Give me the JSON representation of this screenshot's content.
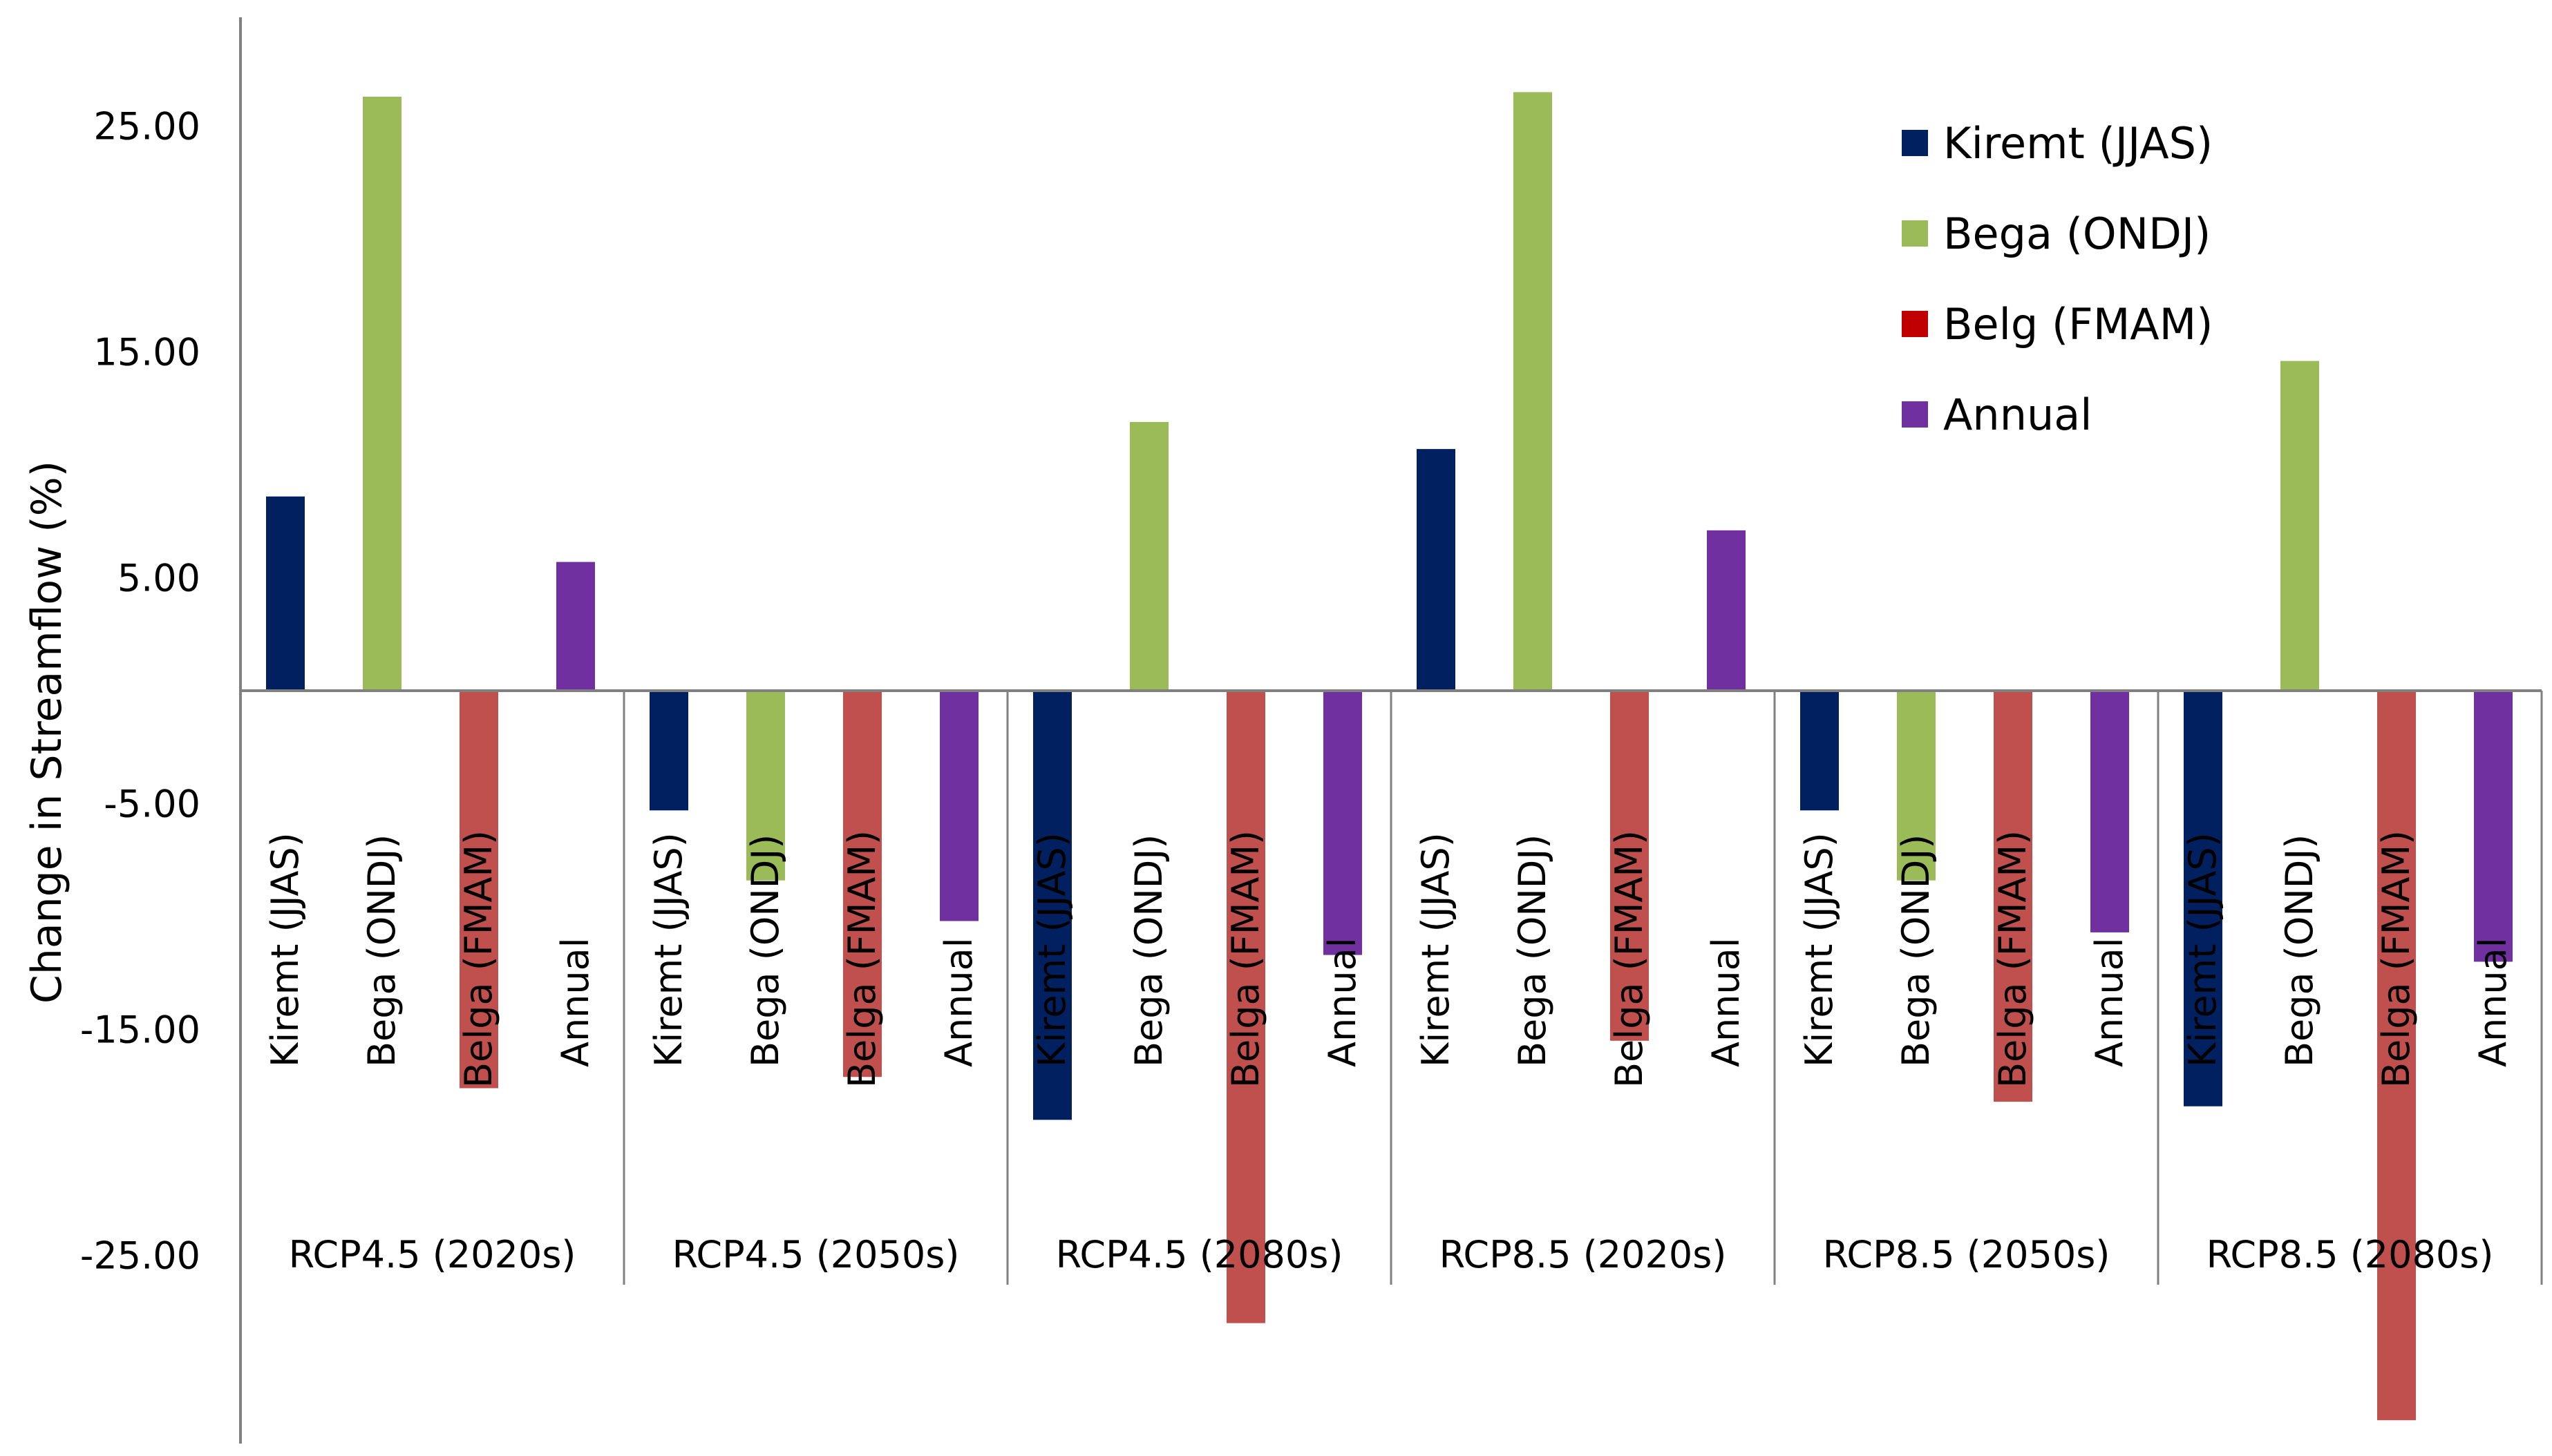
{
  "chart_data": {
    "type": "bar",
    "title": "",
    "xlabel": "",
    "ylabel": "Change in Streamflow (%)",
    "ylim": [
      -33,
      30
    ],
    "yticks": [
      25,
      15,
      5,
      -5,
      -15,
      -25
    ],
    "ytick_labels": [
      "25.00",
      "15.00",
      "5.00",
      "-5.00",
      "-15.00",
      "-25.00"
    ],
    "grid": false,
    "legend_position": "top-right",
    "groups": [
      {
        "label": "RCP4.5 (2020s)",
        "bar_labels": [
          "Kiremt (JJAS)",
          "Bega (ONDJ)",
          "Belga (FMAM)",
          "Annual"
        ]
      },
      {
        "label": "RCP4.5 (2050s)",
        "bar_labels": [
          "Kiremt (JJAS)",
          "Bega (ONDJ)",
          "Belga (FMAM)",
          "Annual"
        ]
      },
      {
        "label": "RCP4.5 (2080s)",
        "bar_labels": [
          "Kiremt (JJAS)",
          "Bega (ONDJ)",
          "Belga (FMAM)",
          "Annual"
        ]
      },
      {
        "label": "RCP8.5 (2020s)",
        "bar_labels": [
          "Kiremt (JJAS)",
          "Bega (ONDJ)",
          "Belga (FMAM)",
          "Annual"
        ]
      },
      {
        "label": "RCP8.5 (2050s)",
        "bar_labels": [
          "Kiremt (JJAS)",
          "Bega (ONDJ)",
          "Belga (FMAM)",
          "Annual"
        ]
      },
      {
        "label": "RCP8.5 (2080s)",
        "bar_labels": [
          "Kiremt (JJAS)",
          "Bega (ONDJ)",
          "Belga (FMAM)",
          "Annual"
        ]
      }
    ],
    "series": [
      {
        "name": "Kiremt (JJAS)",
        "color": "#002060",
        "values": [
          8.6,
          -5.3,
          -19.0,
          10.7,
          -5.3,
          -18.4
        ]
      },
      {
        "name": "Bega (ONDJ)",
        "color": "#9BBB59",
        "values": [
          26.3,
          -8.4,
          11.9,
          26.5,
          -8.4,
          14.6
        ]
      },
      {
        "name": "Belg (FMAM)",
        "color": "#C0504D",
        "values": [
          -17.6,
          -17.1,
          -28.0,
          -15.5,
          -18.2,
          -32.3
        ]
      },
      {
        "name": "Annual",
        "color": "#7030A0",
        "values": [
          5.7,
          -10.2,
          -11.7,
          7.1,
          -10.7,
          -12.0
        ]
      }
    ],
    "legend": [
      {
        "label": "Kiremt (JJAS)",
        "swatch_color": "#002060"
      },
      {
        "label": "Bega (ONDJ)",
        "swatch_color": "#9BBB59"
      },
      {
        "label": "Belg (FMAM)",
        "swatch_color": "#C00000"
      },
      {
        "label": "Annual",
        "swatch_color": "#7030A0"
      }
    ]
  }
}
